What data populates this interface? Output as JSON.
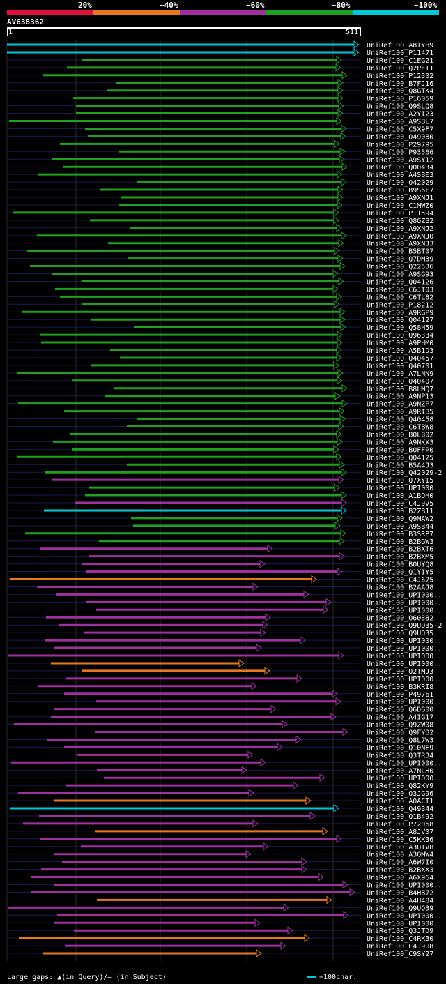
{
  "legend": {
    "items": [
      {
        "label": "20%",
        "color": "#e0103c"
      },
      {
        "label": "~40%",
        "color": "#e87820"
      },
      {
        "label": "~60%",
        "color": "#a030a0"
      },
      {
        "label": "~80%",
        "color": "#20a020"
      },
      {
        "label": "~100%",
        "color": "#00c8d8"
      }
    ]
  },
  "query": {
    "id": "AV638362",
    "start": "1",
    "end": "511"
  },
  "hits": [
    {
      "label": "UniRef100_A8IYH9",
      "color": "#00c8d8"
    },
    {
      "label": "UniRef100_P11471",
      "color": "#00c8d8"
    },
    {
      "label": "UniRef100_C1EG21",
      "color": "#20a020"
    },
    {
      "label": "UniRef100_Q2PET1",
      "color": "#20a020"
    },
    {
      "label": "UniRef100_P12302",
      "color": "#20a020"
    },
    {
      "label": "UniRef100_B7FJ16",
      "color": "#20a020"
    },
    {
      "label": "UniRef100_Q8GTK4",
      "color": "#20a020"
    },
    {
      "label": "UniRef100_P16059",
      "color": "#20a020"
    },
    {
      "label": "UniRef100_Q9SLQ8",
      "color": "#20a020"
    },
    {
      "label": "UniRef100_A2YI23",
      "color": "#20a020"
    },
    {
      "label": "UniRef100_A9SBL7",
      "color": "#20a020"
    },
    {
      "label": "UniRef100_C5X9F7",
      "color": "#20a020"
    },
    {
      "label": "UniRef100_O49080",
      "color": "#20a020"
    },
    {
      "label": "UniRef100_P29795",
      "color": "#20a020"
    },
    {
      "label": "UniRef100_P93566",
      "color": "#20a020"
    },
    {
      "label": "UniRef100_A9SY12",
      "color": "#20a020"
    },
    {
      "label": "UniRef100_Q00434",
      "color": "#20a020"
    },
    {
      "label": "UniRef100_A4SBE3",
      "color": "#20a020"
    },
    {
      "label": "UniRef100_O42029",
      "color": "#20a020"
    },
    {
      "label": "UniRef100_B9S6F7",
      "color": "#20a020"
    },
    {
      "label": "UniRef100_A9XNJ1",
      "color": "#20a020"
    },
    {
      "label": "UniRef100_C1MWZ0",
      "color": "#20a020"
    },
    {
      "label": "UniRef100_P11594",
      "color": "#20a020"
    },
    {
      "label": "UniRef100_Q8GZB2",
      "color": "#20a020"
    },
    {
      "label": "UniRef100_A9XNJ2",
      "color": "#20a020"
    },
    {
      "label": "UniRef100_A9XNJ0",
      "color": "#20a020"
    },
    {
      "label": "UniRef100_A9XNJ3",
      "color": "#20a020"
    },
    {
      "label": "UniRef100_B5BT07",
      "color": "#20a020"
    },
    {
      "label": "UniRef100_Q7DM39",
      "color": "#20a020"
    },
    {
      "label": "UniRef100_Q22536",
      "color": "#20a020"
    },
    {
      "label": "UniRef100_A9SG93",
      "color": "#20a020"
    },
    {
      "label": "UniRef100_Q04126",
      "color": "#20a020"
    },
    {
      "label": "UniRef100_C6JT03",
      "color": "#20a020"
    },
    {
      "label": "UniRef100_C6TL82",
      "color": "#20a020"
    },
    {
      "label": "UniRef100_P18212",
      "color": "#20a020"
    },
    {
      "label": "UniRef100_A9RGP9",
      "color": "#20a020"
    },
    {
      "label": "UniRef100_Q04127",
      "color": "#20a020"
    },
    {
      "label": "UniRef100_Q58H59",
      "color": "#20a020"
    },
    {
      "label": "UniRef100_Q96334",
      "color": "#20a020"
    },
    {
      "label": "UniRef100_A9PHM0",
      "color": "#20a020"
    },
    {
      "label": "UniRef100_A5B1D3",
      "color": "#20a020"
    },
    {
      "label": "UniRef100_Q40457",
      "color": "#20a020"
    },
    {
      "label": "UniRef100_Q40701",
      "color": "#20a020"
    },
    {
      "label": "UniRef100_A7LNN9",
      "color": "#20a020"
    },
    {
      "label": "UniRef100_Q40407",
      "color": "#20a020"
    },
    {
      "label": "UniRef100_B8LMQ7",
      "color": "#20a020"
    },
    {
      "label": "UniRef100_A9NP13",
      "color": "#20a020"
    },
    {
      "label": "UniRef100_A9NZP7",
      "color": "#20a020"
    },
    {
      "label": "UniRef100_A9RIB5",
      "color": "#20a020"
    },
    {
      "label": "UniRef100_Q40458",
      "color": "#20a020"
    },
    {
      "label": "UniRef100_C6TBW8",
      "color": "#20a020"
    },
    {
      "label": "UniRef100_B0L802",
      "color": "#20a020"
    },
    {
      "label": "UniRef100_A9NKX3",
      "color": "#20a020"
    },
    {
      "label": "UniRef100_B0FFP0",
      "color": "#20a020"
    },
    {
      "label": "UniRef100_Q04125",
      "color": "#20a020"
    },
    {
      "label": "UniRef100_B5A4J3",
      "color": "#20a020"
    },
    {
      "label": "UniRef100_Q42029-2",
      "color": "#20a020"
    },
    {
      "label": "UniRef100_Q7XYI5",
      "color": "#a030a0"
    },
    {
      "label": "UniRef100_UPI000..",
      "color": "#20a020"
    },
    {
      "label": "UniRef100_A1BDH0",
      "color": "#20a020"
    },
    {
      "label": "UniRef100_C4J9V5",
      "color": "#a030a0"
    },
    {
      "label": "UniRef100_B2ZB11",
      "color": "#00c8d8"
    },
    {
      "label": "UniRef100_Q9MAW2",
      "color": "#20a020"
    },
    {
      "label": "UniRef100_A9SB44",
      "color": "#20a020"
    },
    {
      "label": "UniRef100_B3SRP7",
      "color": "#20a020"
    },
    {
      "label": "UniRef100_B2BGW3",
      "color": "#20a020"
    },
    {
      "label": "UniRef100_B2BXT6",
      "color": "#a030a0"
    },
    {
      "label": "UniRef100_B2BXM5",
      "color": "#a030a0"
    },
    {
      "label": "UniRef100_B0UYQ8",
      "color": "#a030a0"
    },
    {
      "label": "UniRef100_Q1YIY5",
      "color": "#a030a0"
    },
    {
      "label": "UniRef100_C4J675",
      "color": "#e87820"
    },
    {
      "label": "UniRef100_B2AAJ8",
      "color": "#a030a0"
    },
    {
      "label": "UniRef100_UPI000..",
      "color": "#a030a0"
    },
    {
      "label": "UniRef100_UPI000..",
      "color": "#a030a0"
    },
    {
      "label": "UniRef100_UPI000..",
      "color": "#a030a0"
    },
    {
      "label": "UniRef100_O60382",
      "color": "#a030a0"
    },
    {
      "label": "UniRef100_Q9UQ35-2",
      "color": "#a030a0"
    },
    {
      "label": "UniRef100_Q9UQ35",
      "color": "#a030a0"
    },
    {
      "label": "UniRef100_UPI000..",
      "color": "#a030a0"
    },
    {
      "label": "UniRef100_UPI000..",
      "color": "#a030a0"
    },
    {
      "label": "UniRef100_UPI000..",
      "color": "#a030a0"
    },
    {
      "label": "UniRef100_UPI000..",
      "color": "#e87820"
    },
    {
      "label": "UniRef100_Q2TMJ3",
      "color": "#e87820"
    },
    {
      "label": "UniRef100_UPI000..",
      "color": "#a030a0"
    },
    {
      "label": "UniRef100_B3KRI8",
      "color": "#a030a0"
    },
    {
      "label": "UniRef100_P49761",
      "color": "#a030a0"
    },
    {
      "label": "UniRef100_UPI000..",
      "color": "#a030a0"
    },
    {
      "label": "UniRef100_Q6DG00",
      "color": "#a030a0"
    },
    {
      "label": "UniRef100_A4IG17",
      "color": "#a030a0"
    },
    {
      "label": "UniRef100_Q9ZW08",
      "color": "#a030a0"
    },
    {
      "label": "UniRef100_Q9FYB2",
      "color": "#a030a0"
    },
    {
      "label": "UniRef100_Q8L7W3",
      "color": "#a030a0"
    },
    {
      "label": "UniRef100_Q10NF9",
      "color": "#a030a0"
    },
    {
      "label": "UniRef100_Q3TR34",
      "color": "#a030a0"
    },
    {
      "label": "UniRef100_UPI000..",
      "color": "#a030a0"
    },
    {
      "label": "UniRef100_A7NLH0",
      "color": "#a030a0"
    },
    {
      "label": "UniRef100_UPI000..",
      "color": "#a030a0"
    },
    {
      "label": "UniRef100_Q82KY9",
      "color": "#a030a0"
    },
    {
      "label": "UniRef100_Q3JG96",
      "color": "#a030a0"
    },
    {
      "label": "UniRef100_A0ACI1",
      "color": "#e87820"
    },
    {
      "label": "UniRef100_Q49344",
      "color": "#00c8d8"
    },
    {
      "label": "UniRef100_Q1B492",
      "color": "#a030a0"
    },
    {
      "label": "UniRef100_P72068",
      "color": "#a030a0"
    },
    {
      "label": "UniRef100_A8JV07",
      "color": "#e87820"
    },
    {
      "label": "UniRef100_C5KK36",
      "color": "#a030a0"
    },
    {
      "label": "UniRef100_A3QTV8",
      "color": "#a030a0"
    },
    {
      "label": "UniRef100_A3QMW4",
      "color": "#a030a0"
    },
    {
      "label": "UniRef100_A6W7I0",
      "color": "#a030a0"
    },
    {
      "label": "UniRef100_B2BXX3",
      "color": "#a030a0"
    },
    {
      "label": "UniRef100_A6X964",
      "color": "#a030a0"
    },
    {
      "label": "UniRef100_UPI000..",
      "color": "#a030a0"
    },
    {
      "label": "UniRef100_B4HB72",
      "color": "#a030a0"
    },
    {
      "label": "UniRef100_A4H484",
      "color": "#e87820"
    },
    {
      "label": "UniRef100_Q9UQ39",
      "color": "#a030a0"
    },
    {
      "label": "UniRef100_UPI000..",
      "color": "#a030a0"
    },
    {
      "label": "UniRef100_UPI000..",
      "color": "#a030a0"
    },
    {
      "label": "UniRef100_Q3JTD9",
      "color": "#a030a0"
    },
    {
      "label": "UniRef100_C4RK30",
      "color": "#e87820"
    },
    {
      "label": "UniRef100_C4J9U8",
      "color": "#a030a0"
    },
    {
      "label": "UniRef100_C9SY27",
      "color": "#e87820"
    }
  ],
  "footer": {
    "gaps_text": "Large gaps: ▲(in Query)/– (in Subject)",
    "scale_text": "=100char."
  }
}
